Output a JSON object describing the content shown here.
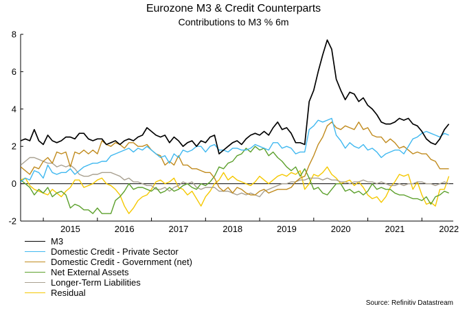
{
  "chart_data": {
    "type": "line",
    "title": "Eurozone M3 & Credit Counterparts",
    "subtitle": "Contributions to M3 % 6m",
    "xlabel": "",
    "ylabel": "",
    "ylim": [
      -2,
      8
    ],
    "yticks": [
      -2,
      0,
      2,
      4,
      6,
      8
    ],
    "xlim": [
      2014.58,
      2022.58
    ],
    "xticks": [
      "2015",
      "2016",
      "2017",
      "2018",
      "2019",
      "2020",
      "2021",
      "2022"
    ],
    "x_start": 2014.583,
    "x_step": 0.08333,
    "legend_position": "bottom-left",
    "source": "Source: Refinitiv Datastream",
    "series": [
      {
        "name": "M3",
        "color": "#000000",
        "values": [
          2.3,
          2.4,
          2.3,
          2.9,
          2.3,
          2.1,
          2.6,
          2.3,
          2.2,
          2.3,
          2.5,
          2.5,
          2.4,
          2.7,
          2.7,
          2.4,
          2.3,
          2.4,
          2.4,
          2.1,
          2.2,
          2.3,
          2.1,
          2.3,
          2.4,
          2.3,
          2.5,
          2.6,
          3.0,
          2.8,
          2.6,
          2.5,
          2.6,
          2.2,
          2.5,
          2.3,
          2.0,
          2.2,
          2.3,
          2.0,
          2.3,
          2.2,
          2.5,
          2.6,
          1.6,
          1.8,
          2.0,
          2.2,
          2.3,
          2.1,
          2.4,
          2.6,
          2.7,
          2.6,
          2.8,
          2.6,
          3.0,
          3.3,
          2.9,
          3.0,
          2.7,
          2.2,
          2.2,
          2.1,
          4.4,
          5.0,
          6.0,
          6.9,
          7.7,
          7.2,
          5.6,
          5.0,
          4.5,
          4.9,
          4.8,
          4.4,
          4.6,
          4.2,
          4.0,
          3.7,
          3.3,
          3.2,
          3.2,
          3.3,
          3.5,
          3.4,
          3.5,
          3.2,
          3.1,
          2.8,
          2.4,
          2.2,
          2.1,
          2.4,
          2.9,
          3.2
        ]
      },
      {
        "name": "Domestic Credit - Private Sector",
        "color": "#3fb8f0",
        "values": [
          0.1,
          0.3,
          0.2,
          0.7,
          0.6,
          0.3,
          1.0,
          0.6,
          0.5,
          0.6,
          0.6,
          0.8,
          0.5,
          0.7,
          0.9,
          1.0,
          1.1,
          1.1,
          1.2,
          1.2,
          1.5,
          1.6,
          1.7,
          1.8,
          1.9,
          1.7,
          1.9,
          1.8,
          2.0,
          1.8,
          1.6,
          1.4,
          1.5,
          1.1,
          1.6,
          1.4,
          1.8,
          1.7,
          1.8,
          2.0,
          2.0,
          1.7,
          2.0,
          2.1,
          1.8,
          1.8,
          1.7,
          1.9,
          1.9,
          1.8,
          1.8,
          1.9,
          2.1,
          2.0,
          1.9,
          1.8,
          2.2,
          2.2,
          1.9,
          2.0,
          1.9,
          1.6,
          1.7,
          1.7,
          2.9,
          3.1,
          3.4,
          3.3,
          3.4,
          3.5,
          2.6,
          2.3,
          1.9,
          2.2,
          2.0,
          1.9,
          2.1,
          1.8,
          1.9,
          1.7,
          1.4,
          1.6,
          1.7,
          1.8,
          1.8,
          1.6,
          2.0,
          2.4,
          2.5,
          2.7,
          2.8,
          2.7,
          2.6,
          2.5,
          2.7,
          2.6
        ]
      },
      {
        "name": "Domestic Credit - Government (net)",
        "color": "#c08a1c",
        "values": [
          0.9,
          0.7,
          0.5,
          0.9,
          0.8,
          1.2,
          1.4,
          1.1,
          1.7,
          1.6,
          1.7,
          0.9,
          1.7,
          1.6,
          1.8,
          1.6,
          1.8,
          1.6,
          2.3,
          2.1,
          2.0,
          2.2,
          2.1,
          1.9,
          2.2,
          2.2,
          2.0,
          2.0,
          2.1,
          1.8,
          1.6,
          1.5,
          1.0,
          1.2,
          1.0,
          1.5,
          1.0,
          1.0,
          0.8,
          0.8,
          0.7,
          0.6,
          0.6,
          0.3,
          -0.2,
          -0.4,
          -0.2,
          -0.5,
          -0.2,
          -0.3,
          -0.5,
          -0.6,
          -0.6,
          -0.4,
          -0.3,
          -0.5,
          -0.4,
          -0.3,
          -0.3,
          -0.3,
          -0.2,
          0.1,
          0.3,
          0.4,
          1.0,
          1.5,
          2.1,
          2.5,
          3.1,
          3.3,
          3.0,
          2.9,
          3.1,
          3.0,
          2.9,
          3.3,
          2.9,
          3.0,
          2.6,
          2.5,
          2.5,
          2.2,
          2.4,
          2.2,
          1.9,
          2.0,
          1.8,
          1.6,
          1.7,
          1.6,
          1.6,
          1.3,
          1.2,
          0.8,
          0.8,
          0.8
        ]
      },
      {
        "name": "Net External Assets",
        "color": "#5ca02c",
        "values": [
          0.2,
          0.0,
          -0.2,
          -0.6,
          -0.3,
          -0.5,
          -0.2,
          -0.7,
          -0.5,
          -0.4,
          -0.6,
          -1.3,
          -1.1,
          -1.2,
          -1.4,
          -1.4,
          -1.6,
          -1.3,
          -1.6,
          -1.6,
          -1.6,
          -0.9,
          -0.7,
          -0.4,
          0.0,
          -0.3,
          -0.2,
          -0.2,
          -0.3,
          -0.4,
          -0.2,
          -0.5,
          -0.4,
          -0.2,
          -0.4,
          -0.3,
          -0.1,
          0.0,
          -0.2,
          -0.3,
          0.0,
          -0.1,
          0.1,
          0.4,
          0.9,
          0.8,
          1.1,
          1.2,
          1.5,
          1.6,
          1.9,
          1.7,
          2.0,
          1.8,
          1.9,
          1.5,
          1.7,
          1.4,
          1.2,
          0.9,
          0.7,
          0.9,
          0.4,
          0.8,
          0.3,
          -0.3,
          -0.2,
          -0.5,
          -0.6,
          -0.3,
          0.0,
          0.0,
          -0.4,
          -0.3,
          -0.5,
          -0.4,
          -0.6,
          -0.4,
          0.0,
          -0.3,
          -0.2,
          -0.3,
          -0.3,
          -0.5,
          -0.6,
          -0.6,
          -0.7,
          -0.8,
          -0.8,
          -0.9,
          -0.7,
          -1.1,
          -0.7,
          -0.6,
          -0.4,
          -0.5
        ]
      },
      {
        "name": "Longer-Term Liabilities",
        "color": "#a8a090",
        "values": [
          1.0,
          1.2,
          1.4,
          1.4,
          1.3,
          1.2,
          1.1,
          1.1,
          0.9,
          1.0,
          0.9,
          1.0,
          0.8,
          0.5,
          0.4,
          0.4,
          0.5,
          0.5,
          0.6,
          0.6,
          0.6,
          0.5,
          0.4,
          0.2,
          0.3,
          0.1,
          0.1,
          0.0,
          -0.1,
          -0.1,
          -0.3,
          -0.3,
          -0.2,
          -0.4,
          -0.2,
          -0.1,
          0.1,
          0.0,
          0.1,
          -0.2,
          -0.3,
          -0.2,
          -0.2,
          -0.2,
          -0.4,
          -0.4,
          -0.4,
          -0.5,
          -0.6,
          -0.5,
          -0.6,
          -0.5,
          -0.6,
          -0.7,
          -0.4,
          -0.3,
          -0.2,
          -0.1,
          0.0,
          0.0,
          0.1,
          0.1,
          0.2,
          0.2,
          0.3,
          0.3,
          0.3,
          0.2,
          0.3,
          0.2,
          0.2,
          0.1,
          0.1,
          0.0,
          0.1,
          0.1,
          0.2,
          0.1,
          0.1,
          0.0,
          0.1,
          0.0,
          -0.1,
          -0.1,
          0.0,
          -0.1,
          0.0,
          0.0,
          0.1,
          0.1,
          0.0,
          0.0,
          -0.1,
          0.0,
          0.1,
          0.0
        ]
      },
      {
        "name": "Residual",
        "color": "#f5c800",
        "values": [
          0.2,
          0.3,
          -0.1,
          -0.3,
          -0.4,
          -0.5,
          -0.6,
          -0.3,
          -0.5,
          -0.7,
          -0.4,
          -0.2,
          0.2,
          0.2,
          -0.2,
          -0.1,
          0.0,
          0.2,
          0.3,
          0.0,
          -0.1,
          -0.3,
          -0.6,
          -1.2,
          -1.6,
          -1.3,
          -0.9,
          -0.7,
          -0.6,
          -0.3,
          0.1,
          0.2,
          0.0,
          0.1,
          0.3,
          -0.2,
          -0.3,
          -0.6,
          -0.4,
          -0.8,
          -1.2,
          -0.7,
          -0.4,
          0.0,
          0.2,
          0.6,
          0.2,
          0.4,
          0.2,
          0.1,
          0.0,
          -0.1,
          0.1,
          0.4,
          0.2,
          0.0,
          0.2,
          0.4,
          0.5,
          0.4,
          0.6,
          0.5,
          0.7,
          -0.3,
          0.0,
          0.5,
          0.4,
          0.6,
          0.9,
          0.5,
          0.3,
          0.0,
          0.1,
          0.2,
          -0.1,
          0.1,
          -0.2,
          -0.6,
          -0.8,
          -0.7,
          -1.0,
          -0.7,
          -0.2,
          0.1,
          0.5,
          0.4,
          0.5,
          -0.3,
          0.1,
          -0.6,
          -1.1,
          -1.0,
          -1.2,
          -0.3,
          -0.3,
          0.4
        ]
      }
    ]
  }
}
